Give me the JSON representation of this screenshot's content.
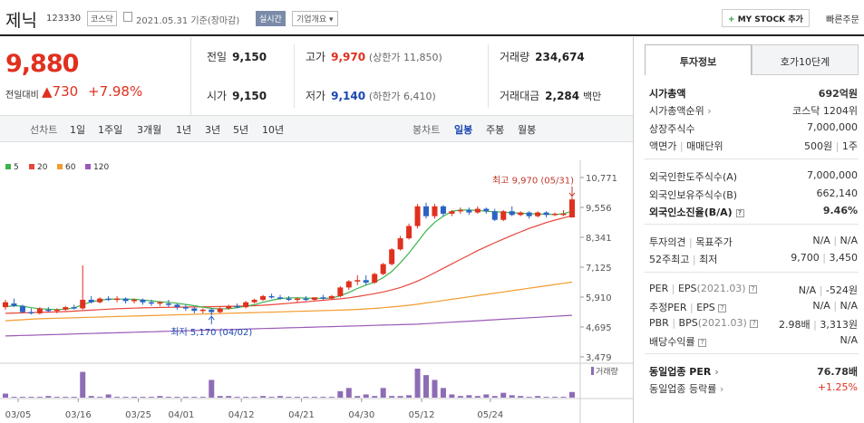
{
  "header": {
    "name": "제닉",
    "code": "123330",
    "market": "코스닥",
    "date": "2021.05.31 기준(장마감)",
    "realtime": "실시간",
    "company_info": "기업개요",
    "mystock": "MY STOCK 추가",
    "quick_order": "빠른주문"
  },
  "quote": {
    "price": "9,880",
    "change_label": "전일대비",
    "change": "730",
    "change_pct": "+7.98%",
    "prev_label": "전일",
    "prev": "9,150",
    "open_label": "시가",
    "open": "9,150",
    "high_label": "고가",
    "high": "9,970",
    "upper_label": "(상한가 11,850)",
    "low_label": "저가",
    "low": "9,140",
    "lower_label": "(하한가 6,410)",
    "volume_label": "거래량",
    "volume": "234,674",
    "amount_label": "거래대금",
    "amount": "2,284",
    "amount_unit": "백만"
  },
  "periods": {
    "line_chart": "선차트",
    "items": [
      "1일",
      "1주일",
      "3개월",
      "1년",
      "3년",
      "5년",
      "10년"
    ],
    "candle_chart": "봉차트",
    "candle_items": [
      "일봉",
      "주봉",
      "월봉"
    ],
    "active": "일봉"
  },
  "chart_data": {
    "type": "candlestick",
    "legend": [
      {
        "name": "5",
        "color": "#3cb44b"
      },
      {
        "name": "20",
        "color": "#e8463c"
      },
      {
        "name": "60",
        "color": "#f39c2f"
      },
      {
        "name": "120",
        "color": "#9b59b6"
      }
    ],
    "y_ticks": [
      "10,771",
      "9,556",
      "8,341",
      "7,125",
      "5,910",
      "4,695",
      "3,479"
    ],
    "x_ticks": [
      "03/05",
      "03/16",
      "03/25",
      "04/01",
      "04/12",
      "04/21",
      "04/30",
      "05/12",
      "05/24"
    ],
    "ylim": [
      3479,
      10771
    ],
    "max_label": "최고 9,970 (05/31)",
    "min_label": "최저 5,170 (04/02)",
    "volume_label": "거래량",
    "candles": [
      [
        5500,
        5800,
        5700,
        5400
      ],
      [
        5650,
        5850,
        5550,
        5500
      ],
      [
        5550,
        5600,
        5300,
        5250
      ],
      [
        5300,
        5450,
        5250,
        5200
      ],
      [
        5250,
        5500,
        5450,
        5200
      ],
      [
        5400,
        5500,
        5350,
        5300
      ],
      [
        5350,
        5450,
        5400,
        5250
      ],
      [
        5400,
        5550,
        5500,
        5350
      ],
      [
        5500,
        5600,
        5450,
        5400
      ],
      [
        5450,
        7200,
        5800,
        5400
      ],
      [
        5800,
        5950,
        5700,
        5650
      ],
      [
        5700,
        5900,
        5850,
        5650
      ],
      [
        5850,
        5950,
        5800,
        5750
      ],
      [
        5800,
        5950,
        5850,
        5700
      ],
      [
        5850,
        5900,
        5750,
        5650
      ],
      [
        5750,
        5850,
        5800,
        5650
      ],
      [
        5800,
        5850,
        5700,
        5600
      ],
      [
        5700,
        5800,
        5650,
        5550
      ],
      [
        5650,
        5750,
        5700,
        5550
      ],
      [
        5650,
        5800,
        5600,
        5500
      ],
      [
        5600,
        5650,
        5500,
        5400
      ],
      [
        5500,
        5600,
        5450,
        5350
      ],
      [
        5450,
        5500,
        5350,
        5250
      ],
      [
        5350,
        5450,
        5400,
        5250
      ],
      [
        5400,
        5450,
        5300,
        5170
      ],
      [
        5300,
        5500,
        5450,
        5250
      ],
      [
        5450,
        5600,
        5550,
        5400
      ],
      [
        5550,
        5650,
        5500,
        5450
      ],
      [
        5500,
        5750,
        5700,
        5450
      ],
      [
        5700,
        5850,
        5800,
        5650
      ],
      [
        5800,
        6000,
        5950,
        5750
      ],
      [
        5950,
        6050,
        5900,
        5850
      ],
      [
        5900,
        6000,
        5850,
        5800
      ],
      [
        5850,
        5950,
        5800,
        5750
      ],
      [
        5800,
        5900,
        5850,
        5700
      ],
      [
        5850,
        5950,
        5800,
        5750
      ],
      [
        5800,
        5900,
        5900,
        5750
      ],
      [
        5900,
        6000,
        5850,
        5800
      ],
      [
        5850,
        6000,
        5950,
        5800
      ],
      [
        5950,
        6350,
        6300,
        5900
      ],
      [
        6300,
        6600,
        6550,
        6200
      ],
      [
        6550,
        6800,
        6600,
        6400
      ],
      [
        6600,
        6800,
        6500,
        6400
      ],
      [
        6500,
        6900,
        6850,
        6450
      ],
      [
        6850,
        7300,
        7250,
        6800
      ],
      [
        7250,
        7900,
        7850,
        7200
      ],
      [
        7850,
        8400,
        8300,
        7800
      ],
      [
        8300,
        8900,
        8800,
        8250
      ],
      [
        8800,
        9700,
        9600,
        8700
      ],
      [
        9600,
        9750,
        9200,
        9100
      ],
      [
        9200,
        9700,
        9600,
        9100
      ],
      [
        9600,
        9650,
        9300,
        9200
      ],
      [
        9300,
        9450,
        9400,
        9200
      ],
      [
        9400,
        9550,
        9450,
        9300
      ],
      [
        9450,
        9550,
        9350,
        9250
      ],
      [
        9350,
        9600,
        9500,
        9300
      ],
      [
        9500,
        9550,
        9400,
        9300
      ],
      [
        9400,
        9500,
        9050,
        9000
      ],
      [
        9050,
        9450,
        9400,
        9000
      ],
      [
        9400,
        9600,
        9250,
        9200
      ],
      [
        9250,
        9400,
        9350,
        9200
      ],
      [
        9350,
        9400,
        9200,
        9100
      ],
      [
        9200,
        9400,
        9350,
        9150
      ],
      [
        9350,
        9400,
        9250,
        9150
      ],
      [
        9250,
        9350,
        9300,
        9200
      ],
      [
        9300,
        9450,
        9300,
        9200
      ],
      [
        9150,
        9970,
        9880,
        9140
      ]
    ],
    "volumes": [
      5,
      1,
      1,
      1,
      1,
      2,
      1,
      1,
      1,
      32,
      2,
      1,
      4,
      1,
      1,
      1,
      1,
      1,
      2,
      1,
      1,
      1,
      1,
      1,
      22,
      2,
      2,
      1,
      1,
      1,
      2,
      1,
      2,
      1,
      1,
      1,
      1,
      1,
      1,
      8,
      12,
      2,
      4,
      2,
      12,
      2,
      2,
      3,
      36,
      28,
      22,
      12,
      4,
      2,
      3,
      2,
      4,
      2,
      6,
      3,
      2,
      1,
      2,
      1,
      1,
      1,
      7
    ],
    "ma5": [
      5520,
      5560,
      5540,
      5480,
      5440,
      5420,
      5400,
      5420,
      5470,
      5600,
      5720,
      5780,
      5820,
      5830,
      5830,
      5820,
      5790,
      5760,
      5720,
      5700,
      5660,
      5610,
      5560,
      5500,
      5450,
      5430,
      5440,
      5480,
      5540,
      5600,
      5700,
      5780,
      5850,
      5880,
      5880,
      5870,
      5860,
      5860,
      5870,
      5960,
      6100,
      6260,
      6400,
      6520,
      6700,
      6950,
      7300,
      7700,
      8150,
      8600,
      8950,
      9200,
      9400,
      9450,
      9450,
      9430,
      9400,
      9380,
      9360,
      9340,
      9320,
      9300,
      9290,
      9280,
      9270,
      9300,
      9400
    ],
    "ma20": [
      5250,
      5260,
      5270,
      5280,
      5290,
      5300,
      5310,
      5320,
      5340,
      5360,
      5380,
      5400,
      5420,
      5440,
      5450,
      5460,
      5470,
      5480,
      5490,
      5495,
      5500,
      5505,
      5510,
      5515,
      5520,
      5525,
      5530,
      5540,
      5550,
      5560,
      5580,
      5600,
      5630,
      5660,
      5690,
      5720,
      5750,
      5780,
      5810,
      5840,
      5880,
      5930,
      5990,
      6050,
      6120,
      6200,
      6300,
      6420,
      6560,
      6720,
      6900,
      7080,
      7260,
      7440,
      7620,
      7800,
      7960,
      8120,
      8270,
      8420,
      8560,
      8700,
      8820,
      8940,
      9040,
      9130,
      9220
    ],
    "ma60": [
      4950,
      4970,
      4990,
      5010,
      5030,
      5040,
      5050,
      5060,
      5070,
      5080,
      5090,
      5100,
      5110,
      5120,
      5130,
      5140,
      5150,
      5160,
      5170,
      5180,
      5190,
      5200,
      5210,
      5220,
      5230,
      5240,
      5250,
      5260,
      5270,
      5280,
      5290,
      5300,
      5310,
      5320,
      5330,
      5340,
      5350,
      5360,
      5370,
      5380,
      5395,
      5410,
      5430,
      5450,
      5480,
      5510,
      5540,
      5580,
      5620,
      5670,
      5720,
      5770,
      5820,
      5870,
      5920,
      5970,
      6020,
      6070,
      6120,
      6170,
      6220,
      6270,
      6320,
      6370,
      6420,
      6470,
      6520
    ],
    "ma120": [
      4330,
      4340,
      4350,
      4360,
      4370,
      4380,
      4390,
      4400,
      4410,
      4420,
      4430,
      4440,
      4450,
      4460,
      4470,
      4480,
      4490,
      4500,
      4510,
      4520,
      4530,
      4540,
      4550,
      4560,
      4570,
      4580,
      4590,
      4600,
      4610,
      4620,
      4630,
      4640,
      4650,
      4660,
      4670,
      4680,
      4690,
      4700,
      4710,
      4720,
      4730,
      4740,
      4750,
      4760,
      4770,
      4780,
      4790,
      4800,
      4810,
      4830,
      4850,
      4870,
      4890,
      4910,
      4930,
      4950,
      4970,
      4990,
      5010,
      5030,
      5050,
      5070,
      5090,
      5110,
      5130,
      5150,
      5170
    ]
  },
  "panel": {
    "tab_invest": "투자정보",
    "tab_orderbook": "호가10단계",
    "market_cap_label": "시가총액",
    "market_cap": "692억원",
    "cap_rank_label": "시가총액순위",
    "cap_rank": "코스닥 1204위",
    "shares_label": "상장주식수",
    "shares": "7,000,000",
    "par_label": "액면가",
    "unit_label": "매매단위",
    "par": "500원",
    "unit": "1주",
    "foreign_limit_label": "외국인한도주식수(A)",
    "foreign_limit": "7,000,000",
    "foreign_hold_label": "외국인보유주식수(B)",
    "foreign_hold": "662,140",
    "foreign_ratio_label": "외국인소진율(B/A)",
    "foreign_ratio": "9.46%",
    "opinion_label": "투자의견",
    "target_label": "목표주가",
    "opinion": "N/A",
    "target": "N/A",
    "wk52_label": "52주최고",
    "wk52_low_label": "최저",
    "wk52_high": "9,700",
    "wk52_low": "3,450",
    "per_label": "PER",
    "eps_label": "EPS",
    "per_date": "(2021.03)",
    "per": "N/A",
    "eps": "-524원",
    "est_per_label": "추정PER",
    "est_eps_label": "EPS",
    "est_per": "N/A",
    "est_eps": "N/A",
    "pbr_label": "PBR",
    "bps_label": "BPS",
    "pbr_date": "(2021.03)",
    "pbr": "2.98배",
    "bps": "3,313원",
    "div_label": "배당수익률",
    "div": "N/A",
    "sector_per_label": "동일업종 PER",
    "sector_per": "76.78배",
    "sector_chg_label": "동일업종 등락률",
    "sector_chg": "+1.25%"
  }
}
